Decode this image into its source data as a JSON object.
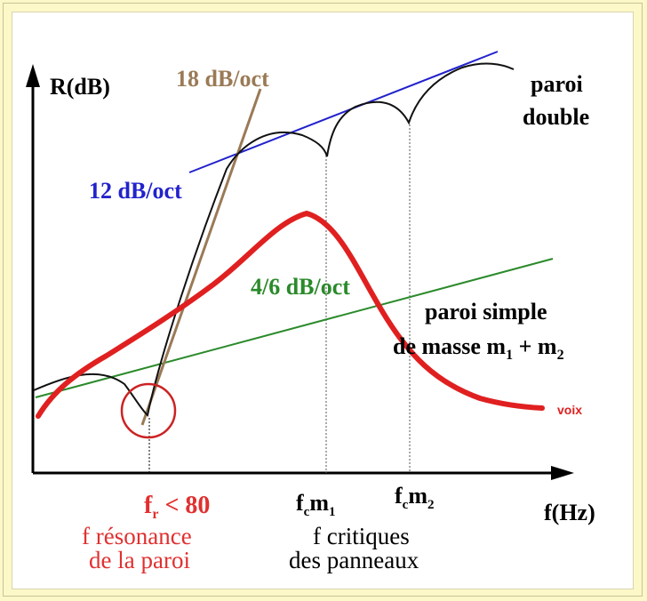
{
  "axes": {
    "y_label": "R(dB)",
    "x_label": "f(Hz)"
  },
  "lines": {
    "slope_18": "18 dB/oct",
    "slope_12": "12 dB/oct",
    "slope_46": "4/6 dB/oct"
  },
  "labels": {
    "double_wall_1": "paroi",
    "double_wall_2": "double",
    "single_wall_1": "paroi simple",
    "single_wall_2_prefix": "de masse m",
    "single_wall_2_sub1": "1",
    "single_wall_2_mid": " + m",
    "single_wall_2_sub2": "2",
    "voice": "voix"
  },
  "x_markers": {
    "fr_main": "f",
    "fr_sub": "r",
    "fr_rest": " < 80",
    "fr_desc_1": "f résonance",
    "fr_desc_2": "de la paroi",
    "fc1_f": "f",
    "fc1_c": "c",
    "fc1_m": "m",
    "fc1_sub": "1",
    "fc2_f": "f",
    "fc2_c": "c",
    "fc2_m": "m",
    "fc2_sub": "2",
    "fc_desc_1": "f critiques",
    "fc_desc_2": "des panneaux"
  },
  "colors": {
    "axis": "#000000",
    "line_18": "#9a7a56",
    "line_12": "#2222cc",
    "line_46": "#2a8a2a",
    "voice": "#e02020",
    "curve": "#111111",
    "red_text": "#e03030"
  }
}
